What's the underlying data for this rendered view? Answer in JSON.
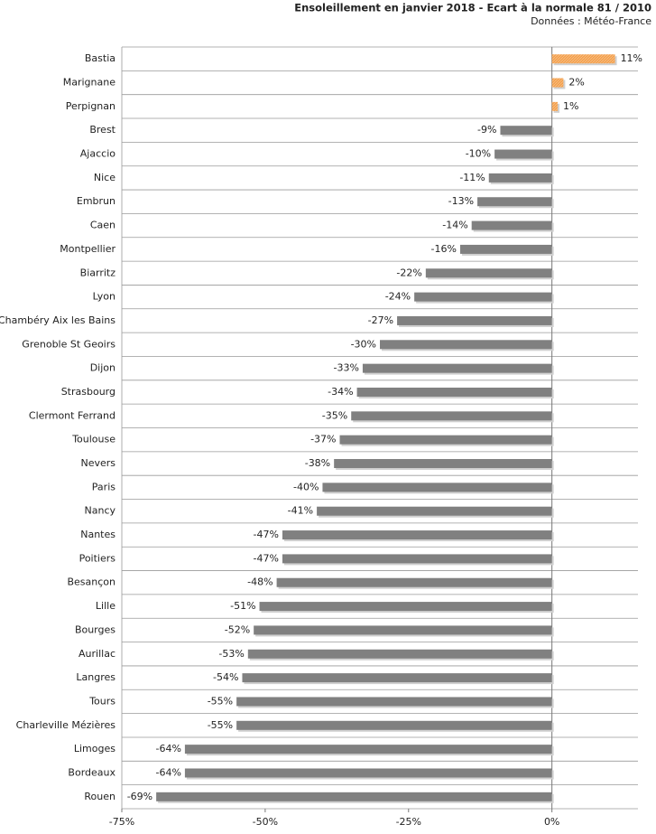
{
  "chart_data": {
    "type": "hbar",
    "title": "Ensoleillement en janvier 2018 - Ecart à la normale 81 / 2010",
    "subtitle": "Données : Météo-France",
    "categories": [
      "Bastia",
      "Marignane",
      "Perpignan",
      "Brest",
      "Ajaccio",
      "Nice",
      "Embrun",
      "Caen",
      "Montpellier",
      "Biarritz",
      "Lyon",
      "Chambéry Aix les Bains",
      "Grenoble St Geoirs",
      "Dijon",
      "Strasbourg",
      "Clermont Ferrand",
      "Toulouse",
      "Nevers",
      "Paris",
      "Nancy",
      "Nantes",
      "Poitiers",
      "Besançon",
      "Lille",
      "Bourges",
      "Aurillac",
      "Langres",
      "Tours",
      "Charleville Mézières",
      "Limoges",
      "Bordeaux",
      "Rouen"
    ],
    "values": [
      11,
      2,
      1,
      -9,
      -10,
      -11,
      -13,
      -14,
      -16,
      -22,
      -24,
      -27,
      -30,
      -33,
      -34,
      -35,
      -37,
      -38,
      -40,
      -41,
      -47,
      -47,
      -48,
      -51,
      -52,
      -53,
      -54,
      -55,
      -55,
      -64,
      -64,
      -69
    ],
    "value_labels": [
      "11%",
      "2%",
      "1%",
      "-9%",
      "-10%",
      "-11%",
      "-13%",
      "-14%",
      "-16%",
      "-22%",
      "-24%",
      "-27%",
      "-30%",
      "-33%",
      "-34%",
      "-35%",
      "-37%",
      "-38%",
      "-40%",
      "-41%",
      "-47%",
      "-47%",
      "-48%",
      "-51%",
      "-52%",
      "-53%",
      "-54%",
      "-55%",
      "-55%",
      "-64%",
      "-64%",
      "-69%"
    ],
    "positive_color": "#f4a04c",
    "negative_color": "#808080",
    "xlim": [
      -75,
      15
    ],
    "xticks": [
      {
        "value": -75,
        "label": "-75%"
      },
      {
        "value": -50,
        "label": "-50%"
      },
      {
        "value": -25,
        "label": "-25%"
      },
      {
        "value": 0,
        "label": "0%"
      }
    ],
    "grid": true
  }
}
